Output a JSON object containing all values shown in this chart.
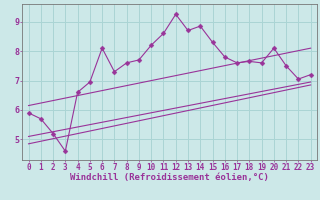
{
  "xlabel": "Windchill (Refroidissement éolien,°C)",
  "bg_color": "#cce8e8",
  "line_color": "#993399",
  "x_ticks": [
    0,
    1,
    2,
    3,
    4,
    5,
    6,
    7,
    8,
    9,
    10,
    11,
    12,
    13,
    14,
    15,
    16,
    17,
    18,
    19,
    20,
    21,
    22,
    23
  ],
  "y_ticks": [
    5,
    6,
    7,
    8,
    9
  ],
  "ylim": [
    4.3,
    9.6
  ],
  "xlim": [
    -0.5,
    23.5
  ],
  "main_x": [
    0,
    1,
    2,
    3,
    4,
    5,
    6,
    7,
    8,
    9,
    10,
    11,
    12,
    13,
    14,
    15,
    16,
    17,
    18,
    19,
    20,
    21,
    22,
    23
  ],
  "main_y": [
    5.9,
    5.7,
    5.2,
    4.6,
    6.6,
    6.95,
    8.1,
    7.3,
    7.6,
    7.7,
    8.2,
    8.6,
    9.25,
    8.7,
    8.85,
    8.3,
    7.8,
    7.6,
    7.65,
    7.6,
    8.1,
    7.5,
    7.05,
    7.2
  ],
  "upper_line_x": [
    0,
    23
  ],
  "upper_line_y": [
    6.15,
    8.1
  ],
  "lower_line_x": [
    0,
    23
  ],
  "lower_line_y": [
    4.85,
    6.85
  ],
  "mid_line_x": [
    0,
    23
  ],
  "mid_line_y": [
    5.1,
    6.95
  ],
  "grid_color": "#aad4d4",
  "tick_fontsize": 5.5,
  "xlabel_fontsize": 6.5
}
